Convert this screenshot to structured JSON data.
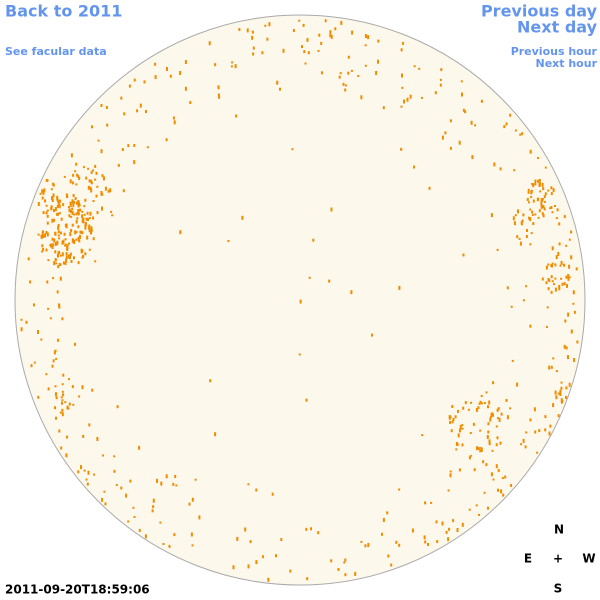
{
  "header": {
    "back_link": "Back to 2011",
    "facular_link": "See facular data",
    "previous_day": "Previous day",
    "next_day": "Next day",
    "previous_hour": "Previous hour",
    "next_hour": "Next hour"
  },
  "timestamp": "2011-09-20T18:59:06",
  "compass": {
    "north": "N",
    "east": "E",
    "center": "+",
    "west": "W",
    "south": "S"
  }
}
